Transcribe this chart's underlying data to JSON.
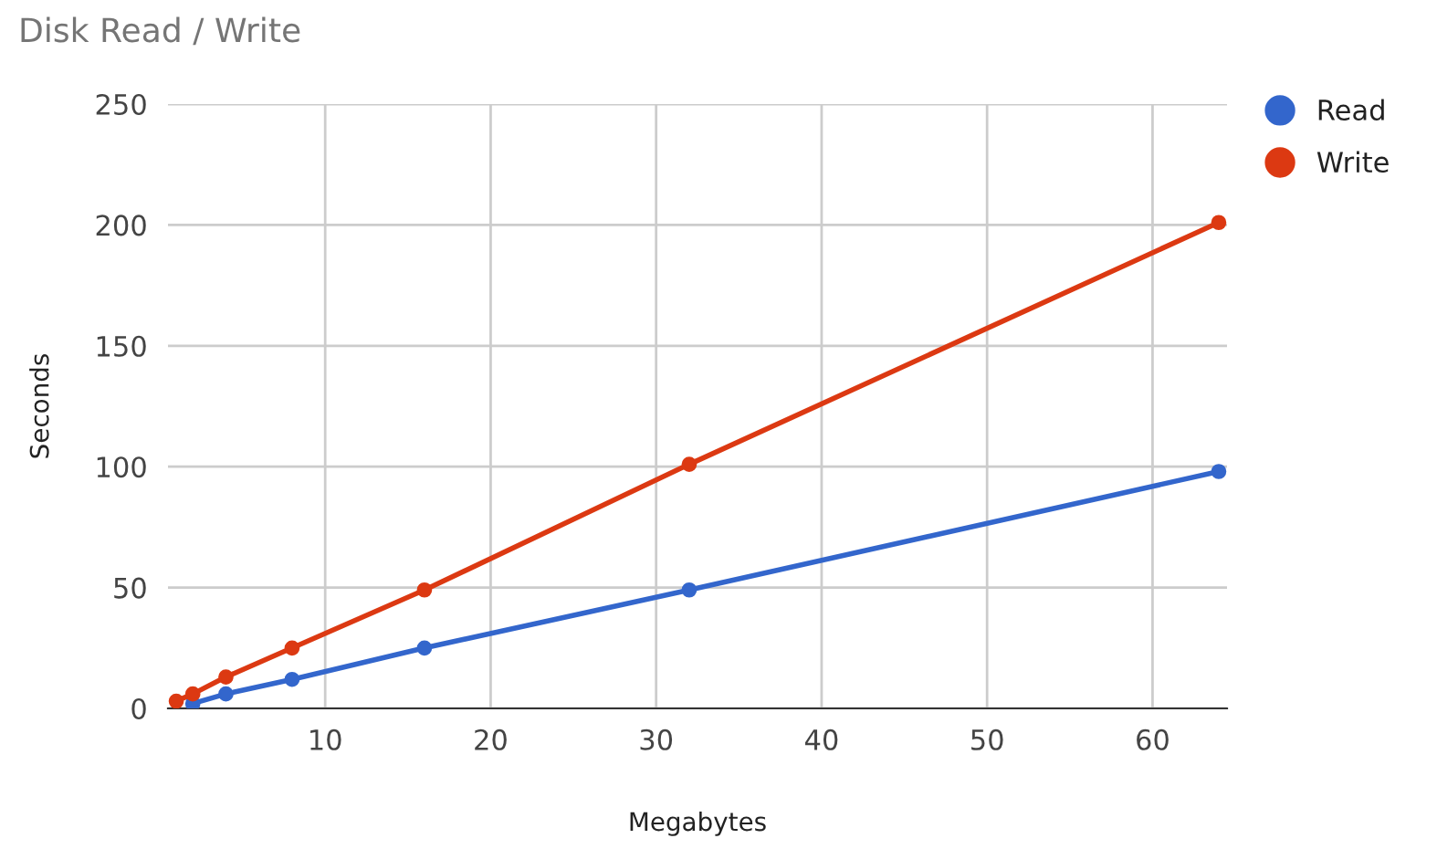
{
  "chart_data": {
    "type": "line",
    "title": "Disk Read / Write",
    "xlabel": "Megabytes",
    "ylabel": "Seconds",
    "x": [
      1,
      2,
      4,
      8,
      16,
      32,
      64
    ],
    "series": [
      {
        "name": "Read",
        "color": "#3366cc",
        "values": [
          null,
          2,
          6,
          12,
          25,
          49,
          98
        ]
      },
      {
        "name": "Write",
        "color": "#dc3912",
        "values": [
          3,
          6,
          13,
          25,
          49,
          101,
          201
        ]
      }
    ],
    "xlim": [
      0.5,
      64.5
    ],
    "xticks": [
      10,
      20,
      30,
      40,
      50,
      60
    ],
    "ylim": [
      0,
      250
    ],
    "yticks": [
      0,
      50,
      100,
      150,
      200,
      250
    ],
    "grid": true,
    "legend": "top right",
    "marker": "circle",
    "line_style": "solid"
  }
}
